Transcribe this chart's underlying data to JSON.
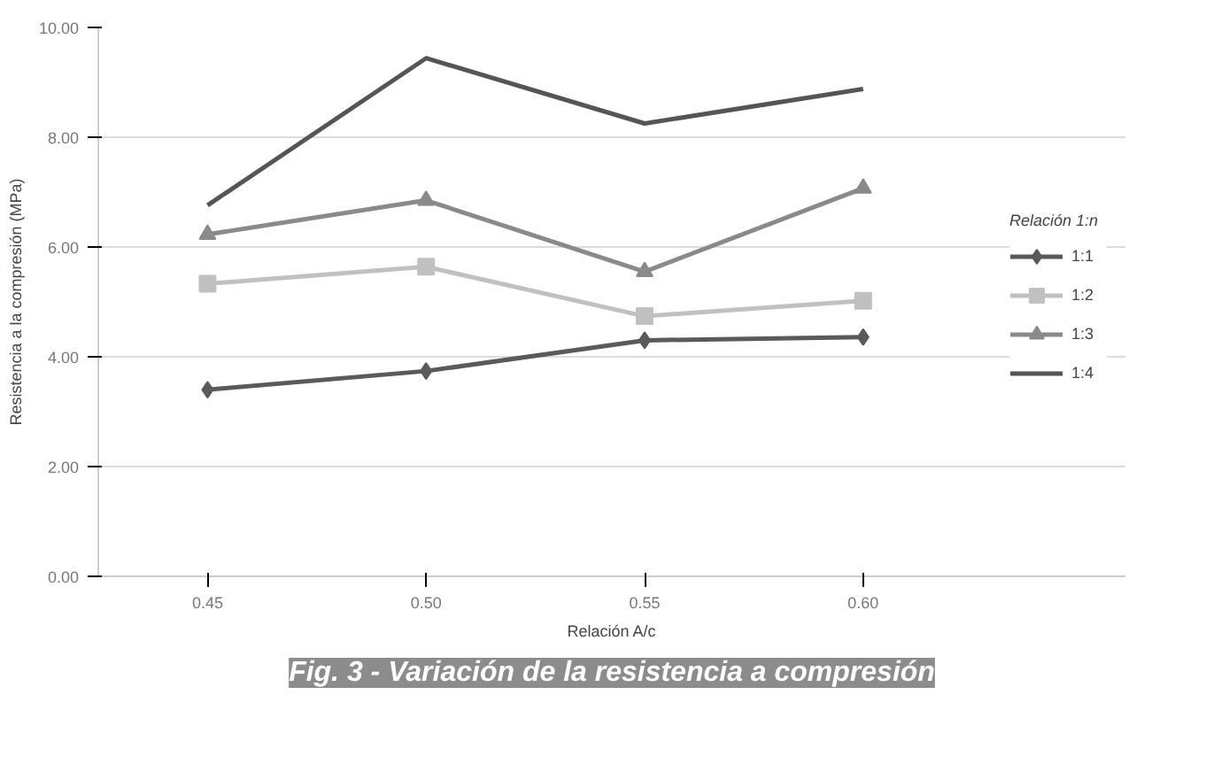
{
  "chart_data": {
    "type": "line",
    "title": "Fig. 3 - Variación de la resistencia a compresión",
    "xlabel": "Relación A/c",
    "ylabel": "Resistencia a la compresión (MPa)",
    "legend_title": "Relación 1:n",
    "categories": [
      "0.45",
      "0.50",
      "0.55",
      "0.60"
    ],
    "ylim": [
      0,
      10
    ],
    "yticks": [
      {
        "value": 0,
        "label": "0.00"
      },
      {
        "value": 2,
        "label": "2.00"
      },
      {
        "value": 4,
        "label": "4.00"
      },
      {
        "value": 6,
        "label": "6.00"
      },
      {
        "value": 8,
        "label": "8.00"
      },
      {
        "value": 10,
        "label": "10.00"
      }
    ],
    "grid": "y",
    "legend": "right",
    "series": [
      {
        "name": "1:1",
        "color": "#5a5a5a",
        "marker": "diamond",
        "values": [
          3.4,
          3.74,
          4.3,
          4.36
        ]
      },
      {
        "name": "1:2",
        "color": "#c0c0c0",
        "marker": "square",
        "values": [
          5.33,
          5.64,
          4.74,
          5.02
        ]
      },
      {
        "name": "1:3",
        "color": "#8a8a8a",
        "marker": "triangle",
        "values": [
          6.23,
          6.85,
          5.55,
          7.07
        ]
      },
      {
        "name": "1:4",
        "color": "#555555",
        "marker": "none",
        "values": [
          6.76,
          9.44,
          8.25,
          8.88
        ]
      }
    ]
  }
}
